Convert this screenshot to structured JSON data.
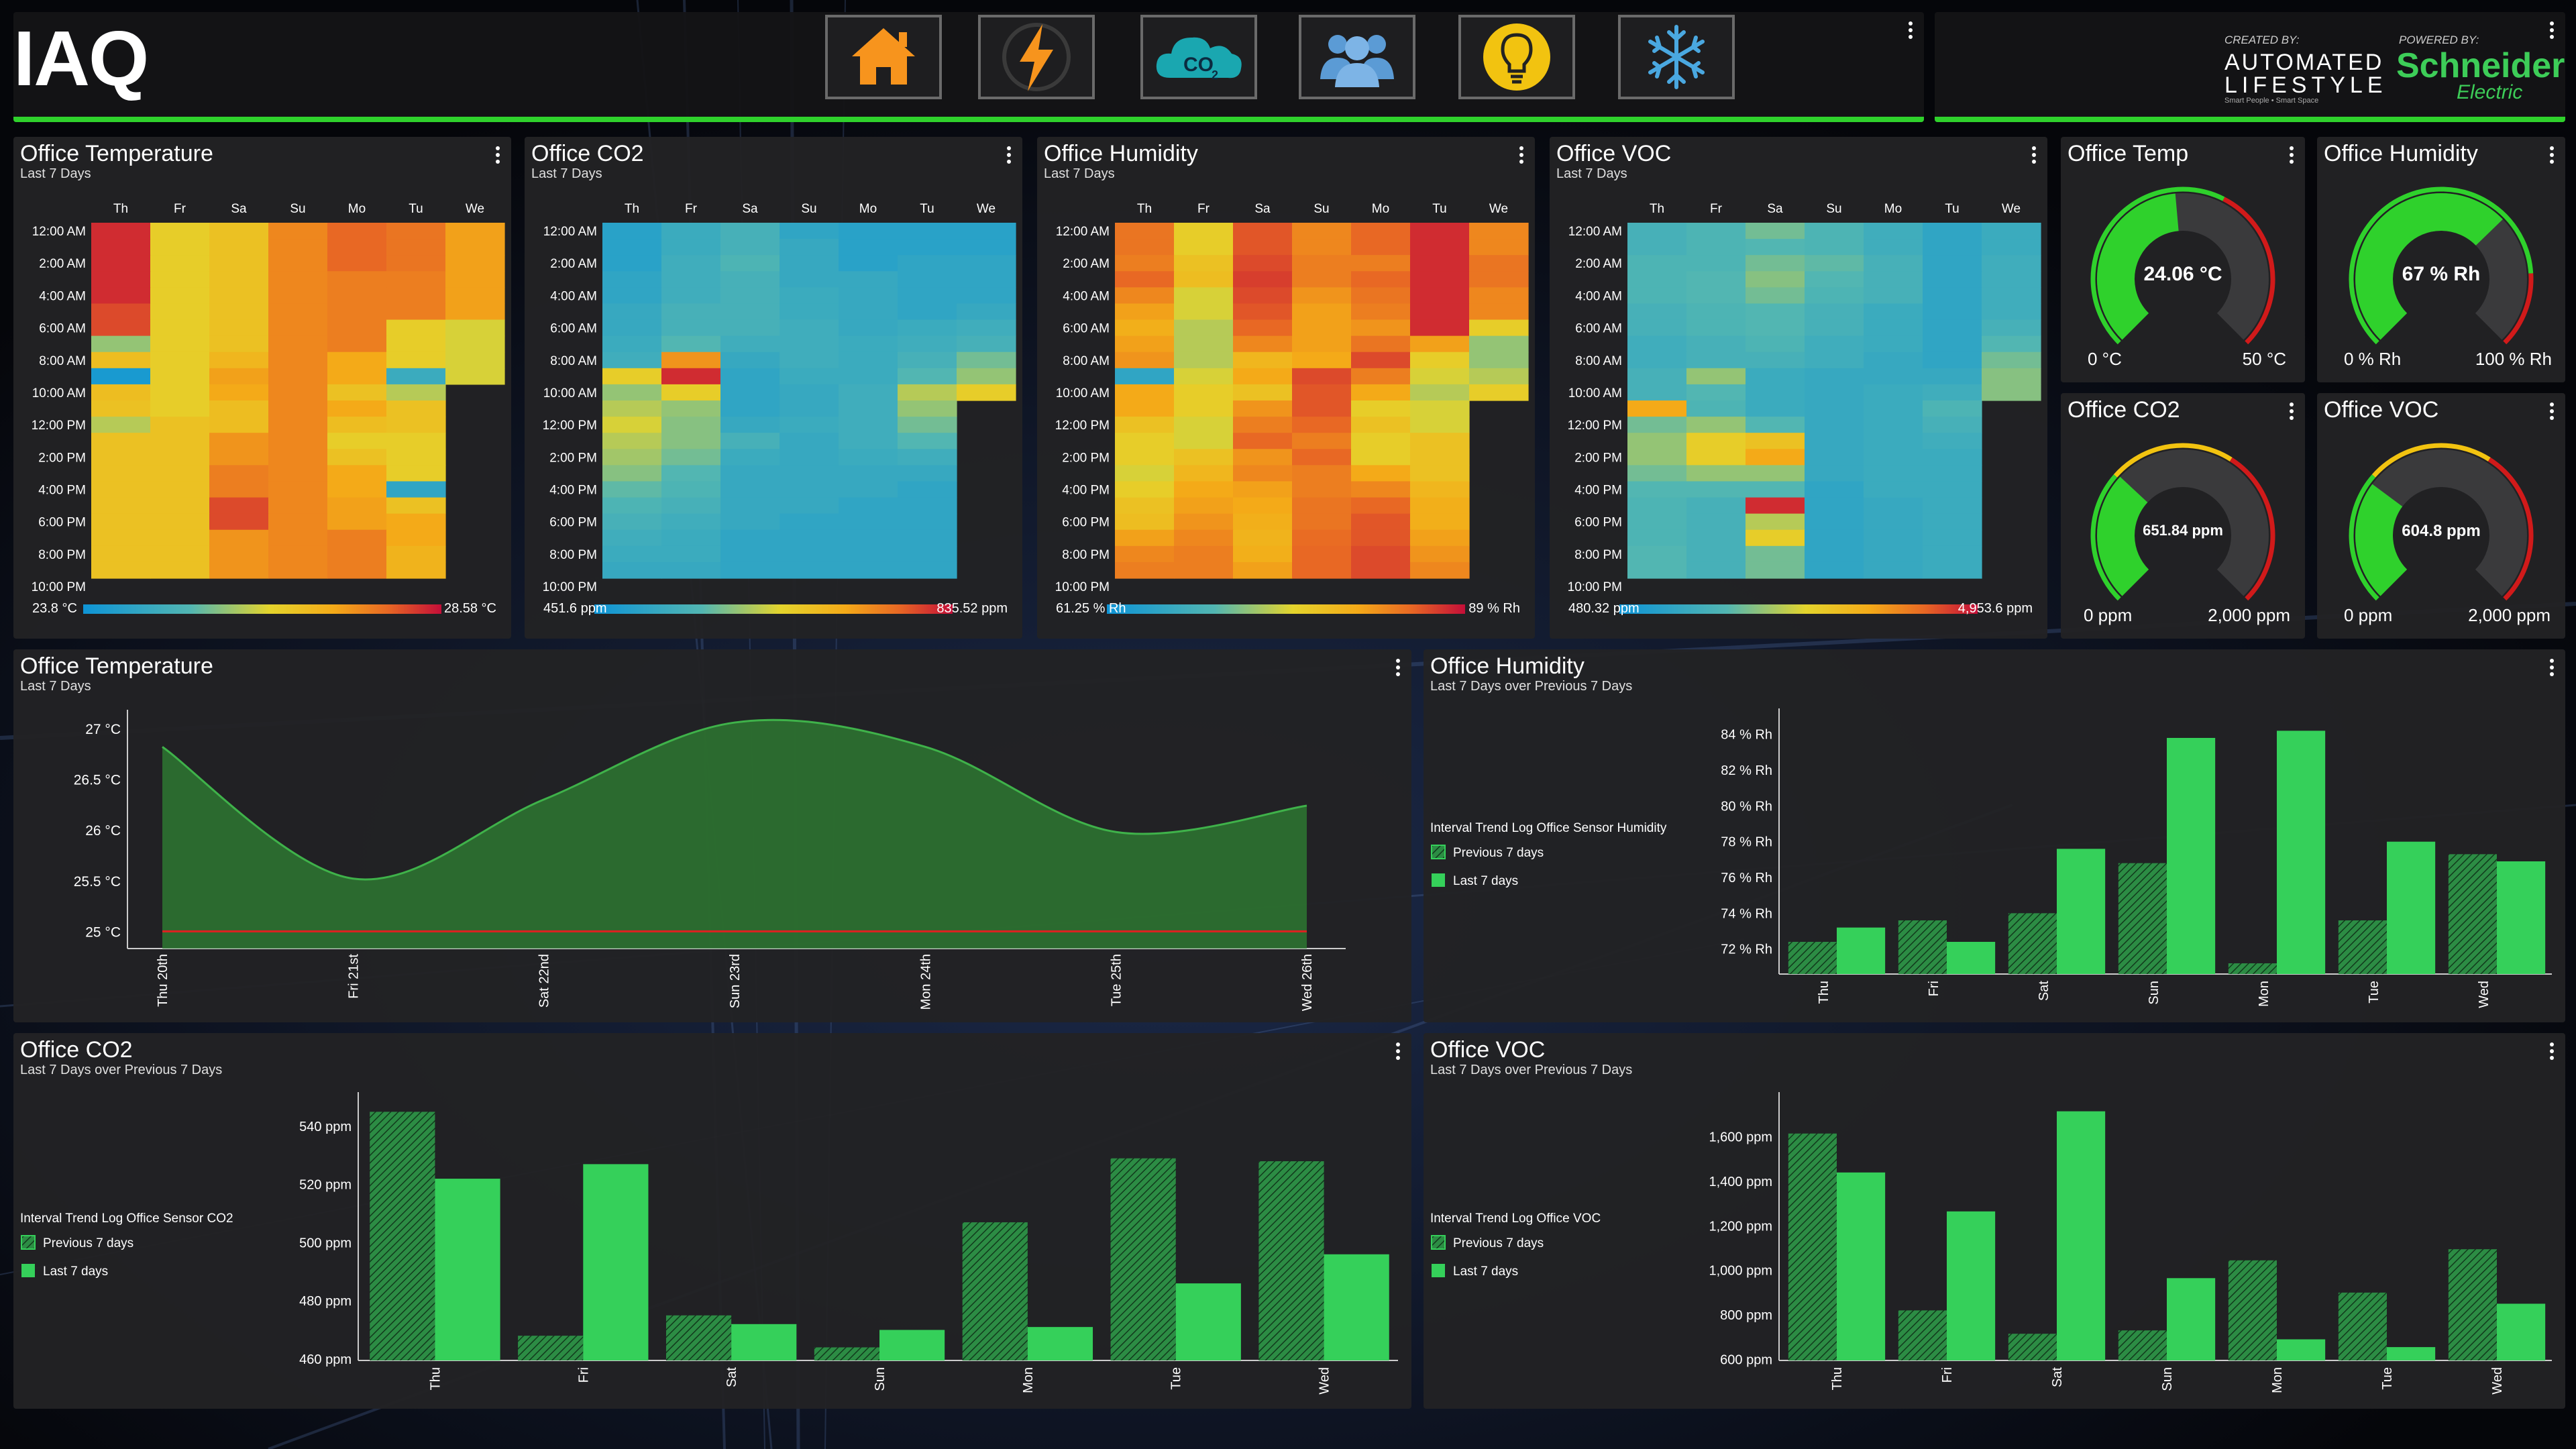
{
  "header": {
    "title": "IAQ",
    "nav": [
      "home-icon",
      "lightning-icon",
      "co2-cloud-icon",
      "users-icon",
      "lightbulb-icon",
      "snowflake-icon"
    ],
    "nav_co2_label": "CO",
    "nav_co2_sub": "2",
    "created_by": "CREATED BY:",
    "brand1_line1": "AUTOMATED",
    "brand1_line2": "LIFESTYLE",
    "brand1_tag": "Smart People • Smart Space",
    "powered_by": "POWERED BY:",
    "brand2_line1": "Schneider",
    "brand2_line2": "Electric"
  },
  "colors": {
    "accent_green": "#2fd12c",
    "bar_green": "#35d05a",
    "gauge_green": "#2fd12c",
    "gauge_yellow": "#f2c310",
    "gauge_red": "#d11a1a",
    "panel_bg": "#232325"
  },
  "heatmap_common": {
    "days": [
      "Th",
      "Fr",
      "Sa",
      "Su",
      "Mo",
      "Tu",
      "We"
    ],
    "times": [
      "12:00 AM",
      "2:00 AM",
      "4:00 AM",
      "6:00 AM",
      "8:00 AM",
      "10:00 AM",
      "12:00 PM",
      "2:00 PM",
      "4:00 PM",
      "6:00 PM",
      "8:00 PM",
      "10:00 PM"
    ]
  },
  "heatmaps": [
    {
      "title": "Office Temperature",
      "subtitle": "Last 7 Days",
      "min_label": "23.8 °C",
      "max_label": "28.58 °C",
      "values": [
        [
          0.95,
          0.55,
          0.6,
          0.78,
          0.85,
          0.82,
          0.72
        ],
        [
          0.95,
          0.55,
          0.6,
          0.78,
          0.85,
          0.82,
          0.72
        ],
        [
          0.95,
          0.55,
          0.6,
          0.78,
          0.85,
          0.82,
          0.72
        ],
        [
          0.95,
          0.55,
          0.6,
          0.78,
          0.8,
          0.8,
          0.72
        ],
        [
          0.95,
          0.55,
          0.6,
          0.78,
          0.8,
          0.8,
          0.72
        ],
        [
          0.9,
          0.55,
          0.6,
          0.78,
          0.8,
          0.8,
          0.72
        ],
        [
          0.9,
          0.55,
          0.6,
          0.78,
          0.8,
          0.55,
          0.5
        ],
        [
          0.4,
          0.55,
          0.6,
          0.78,
          0.8,
          0.55,
          0.5
        ],
        [
          0.62,
          0.55,
          0.65,
          0.78,
          0.7,
          0.55,
          0.5
        ],
        [
          0.05,
          0.55,
          0.72,
          0.78,
          0.7,
          0.2,
          0.5
        ],
        [
          0.62,
          0.55,
          0.7,
          0.78,
          0.6,
          0.45,
          null
        ],
        [
          0.6,
          0.55,
          0.62,
          0.78,
          0.7,
          0.6,
          null
        ],
        [
          0.45,
          0.6,
          0.62,
          0.78,
          0.62,
          0.6,
          null
        ],
        [
          0.6,
          0.6,
          0.75,
          0.78,
          0.55,
          0.55,
          null
        ],
        [
          0.6,
          0.6,
          0.75,
          0.78,
          0.6,
          0.55,
          null
        ],
        [
          0.6,
          0.6,
          0.8,
          0.78,
          0.7,
          0.55,
          null
        ],
        [
          0.6,
          0.6,
          0.8,
          0.78,
          0.7,
          0.15,
          null
        ],
        [
          0.6,
          0.6,
          0.9,
          0.78,
          0.72,
          0.6,
          null
        ],
        [
          0.6,
          0.6,
          0.9,
          0.78,
          0.72,
          0.7,
          null
        ],
        [
          0.6,
          0.6,
          0.75,
          0.78,
          0.8,
          0.7,
          null
        ],
        [
          0.6,
          0.6,
          0.75,
          0.78,
          0.8,
          0.66,
          null
        ],
        [
          0.6,
          0.6,
          0.75,
          0.78,
          0.8,
          0.66,
          null
        ]
      ]
    },
    {
      "title": "Office CO2",
      "subtitle": "Last 7 Days",
      "min_label": "451.6 ppm",
      "max_label": "835.52 ppm",
      "values": [
        [
          0.12,
          0.2,
          0.25,
          0.15,
          0.12,
          0.12,
          0.12
        ],
        [
          0.12,
          0.2,
          0.25,
          0.18,
          0.12,
          0.12,
          0.12
        ],
        [
          0.12,
          0.22,
          0.28,
          0.18,
          0.12,
          0.15,
          0.15
        ],
        [
          0.15,
          0.22,
          0.25,
          0.18,
          0.18,
          0.15,
          0.15
        ],
        [
          0.15,
          0.22,
          0.25,
          0.2,
          0.18,
          0.15,
          0.15
        ],
        [
          0.18,
          0.25,
          0.25,
          0.2,
          0.18,
          0.15,
          0.18
        ],
        [
          0.18,
          0.25,
          0.25,
          0.22,
          0.18,
          0.2,
          0.22
        ],
        [
          0.2,
          0.3,
          0.22,
          0.22,
          0.2,
          0.22,
          0.25
        ],
        [
          0.22,
          0.75,
          0.18,
          0.22,
          0.2,
          0.25,
          0.35
        ],
        [
          0.55,
          0.95,
          0.15,
          0.2,
          0.2,
          0.3,
          0.4
        ],
        [
          0.4,
          0.55,
          0.15,
          0.18,
          0.22,
          0.45,
          0.55
        ],
        [
          0.45,
          0.4,
          0.15,
          0.18,
          0.22,
          0.4,
          null
        ],
        [
          0.5,
          0.38,
          0.18,
          0.2,
          0.22,
          0.35,
          null
        ],
        [
          0.45,
          0.38,
          0.25,
          0.18,
          0.22,
          0.3,
          null
        ],
        [
          0.42,
          0.35,
          0.2,
          0.18,
          0.2,
          0.22,
          null
        ],
        [
          0.38,
          0.3,
          0.18,
          0.18,
          0.18,
          0.18,
          null
        ],
        [
          0.32,
          0.28,
          0.18,
          0.18,
          0.18,
          0.15,
          null
        ],
        [
          0.28,
          0.25,
          0.18,
          0.18,
          0.15,
          0.15,
          null
        ],
        [
          0.25,
          0.22,
          0.18,
          0.15,
          0.15,
          0.15,
          null
        ],
        [
          0.22,
          0.2,
          0.15,
          0.15,
          0.15,
          0.15,
          null
        ],
        [
          0.2,
          0.2,
          0.15,
          0.15,
          0.15,
          0.15,
          null
        ],
        [
          0.18,
          0.18,
          0.15,
          0.15,
          0.15,
          0.15,
          null
        ]
      ]
    },
    {
      "title": "Office Humidity",
      "subtitle": "Last 7 Days",
      "min_label": "61.25 % Rh",
      "max_label": "89 % Rh",
      "values": [
        [
          0.82,
          0.55,
          0.88,
          0.78,
          0.85,
          0.95,
          0.78
        ],
        [
          0.82,
          0.55,
          0.88,
          0.78,
          0.85,
          0.95,
          0.78
        ],
        [
          0.8,
          0.6,
          0.9,
          0.8,
          0.8,
          0.95,
          0.82
        ],
        [
          0.85,
          0.62,
          0.92,
          0.8,
          0.85,
          0.95,
          0.82
        ],
        [
          0.78,
          0.5,
          0.9,
          0.75,
          0.82,
          0.95,
          0.78
        ],
        [
          0.72,
          0.5,
          0.88,
          0.72,
          0.8,
          0.95,
          0.78
        ],
        [
          0.68,
          0.45,
          0.85,
          0.72,
          0.75,
          0.95,
          0.55
        ],
        [
          0.72,
          0.45,
          0.78,
          0.72,
          0.82,
          0.72,
          0.4
        ],
        [
          0.75,
          0.45,
          0.65,
          0.7,
          0.9,
          0.55,
          0.4
        ],
        [
          0.15,
          0.5,
          0.7,
          0.9,
          0.8,
          0.5,
          0.45
        ],
        [
          0.7,
          0.55,
          0.6,
          0.88,
          0.7,
          0.45,
          0.55
        ],
        [
          0.7,
          0.55,
          0.75,
          0.88,
          0.55,
          0.5,
          null
        ],
        [
          0.6,
          0.5,
          0.8,
          0.85,
          0.6,
          0.5,
          null
        ],
        [
          0.55,
          0.5,
          0.85,
          0.8,
          0.55,
          0.6,
          null
        ],
        [
          0.55,
          0.6,
          0.75,
          0.85,
          0.55,
          0.6,
          null
        ],
        [
          0.5,
          0.65,
          0.78,
          0.8,
          0.7,
          0.6,
          null
        ],
        [
          0.55,
          0.7,
          0.72,
          0.8,
          0.78,
          0.65,
          null
        ],
        [
          0.6,
          0.72,
          0.7,
          0.82,
          0.85,
          0.68,
          null
        ],
        [
          0.62,
          0.75,
          0.68,
          0.82,
          0.88,
          0.68,
          null
        ],
        [
          0.72,
          0.78,
          0.66,
          0.84,
          0.88,
          0.72,
          null
        ],
        [
          0.78,
          0.8,
          0.68,
          0.85,
          0.9,
          0.75,
          null
        ],
        [
          0.8,
          0.8,
          0.72,
          0.85,
          0.9,
          0.78,
          null
        ]
      ]
    },
    {
      "title": "Office VOC",
      "subtitle": "Last 7 Days",
      "min_label": "480.32 ppm",
      "max_label": "4,953.6 ppm",
      "values": [
        [
          0.25,
          0.28,
          0.35,
          0.28,
          0.22,
          0.15,
          0.2
        ],
        [
          0.25,
          0.28,
          0.3,
          0.28,
          0.22,
          0.15,
          0.2
        ],
        [
          0.28,
          0.28,
          0.35,
          0.32,
          0.25,
          0.15,
          0.22
        ],
        [
          0.28,
          0.3,
          0.38,
          0.3,
          0.25,
          0.15,
          0.22
        ],
        [
          0.28,
          0.3,
          0.35,
          0.28,
          0.25,
          0.15,
          0.22
        ],
        [
          0.25,
          0.28,
          0.3,
          0.25,
          0.2,
          0.15,
          0.22
        ],
        [
          0.25,
          0.28,
          0.3,
          0.25,
          0.2,
          0.15,
          0.25
        ],
        [
          0.22,
          0.25,
          0.28,
          0.22,
          0.2,
          0.15,
          0.3
        ],
        [
          0.22,
          0.25,
          0.25,
          0.22,
          0.18,
          0.15,
          0.35
        ],
        [
          0.25,
          0.4,
          0.2,
          0.18,
          0.18,
          0.18,
          0.38
        ],
        [
          0.25,
          0.3,
          0.2,
          0.18,
          0.2,
          0.22,
          0.38
        ],
        [
          0.7,
          0.28,
          0.2,
          0.18,
          0.2,
          0.28,
          null
        ],
        [
          0.35,
          0.4,
          0.3,
          0.18,
          0.2,
          0.25,
          null
        ],
        [
          0.4,
          0.55,
          0.6,
          0.18,
          0.2,
          0.22,
          null
        ],
        [
          0.4,
          0.55,
          0.7,
          0.18,
          0.2,
          0.2,
          null
        ],
        [
          0.35,
          0.4,
          0.4,
          0.18,
          0.2,
          0.2,
          null
        ],
        [
          0.3,
          0.3,
          0.3,
          0.15,
          0.2,
          0.2,
          null
        ],
        [
          0.28,
          0.25,
          0.95,
          0.15,
          0.18,
          0.2,
          null
        ],
        [
          0.28,
          0.25,
          0.45,
          0.15,
          0.18,
          0.2,
          null
        ],
        [
          0.28,
          0.25,
          0.55,
          0.15,
          0.18,
          0.2,
          null
        ],
        [
          0.3,
          0.25,
          0.35,
          0.15,
          0.18,
          0.2,
          null
        ],
        [
          0.3,
          0.25,
          0.35,
          0.15,
          0.18,
          0.2,
          null
        ]
      ]
    }
  ],
  "gauges": [
    {
      "title": "Office Temp",
      "value_label": "24.06 °C",
      "value": 24.06,
      "min": 0,
      "max": 50,
      "min_label": "0 °C",
      "max_label": "50 °C",
      "bands": [
        [
          0,
          0.6,
          "green"
        ],
        [
          0.6,
          1.0,
          "red"
        ]
      ]
    },
    {
      "title": "Office Humidity",
      "value_label": "67 % Rh",
      "value": 67,
      "min": 0,
      "max": 100,
      "min_label": "0 % Rh",
      "max_label": "100 % Rh",
      "bands": [
        [
          0,
          0.82,
          "green"
        ],
        [
          0.82,
          1.0,
          "red"
        ]
      ]
    },
    {
      "title": "Office CO2",
      "value_label": "651.84 ppm",
      "value": 651.84,
      "min": 0,
      "max": 2000,
      "min_label": "0 ppm",
      "max_label": "2,000 ppm",
      "bands": [
        [
          0,
          0.32,
          "green"
        ],
        [
          0.32,
          0.62,
          "yellow"
        ],
        [
          0.62,
          1.0,
          "red"
        ]
      ]
    },
    {
      "title": "Office VOC",
      "value_label": "604.8 ppm",
      "value": 604.8,
      "min": 0,
      "max": 2000,
      "min_label": "0 ppm",
      "max_label": "2,000 ppm",
      "bands": [
        [
          0,
          0.32,
          "green"
        ],
        [
          0.32,
          0.62,
          "yellow"
        ],
        [
          0.62,
          1.0,
          "red"
        ]
      ]
    }
  ],
  "chart_data": [
    {
      "type": "area",
      "title": "Office Temperature",
      "subtitle": "Last 7 Days",
      "x_labels": [
        "Thu 20th",
        "Fri 21st",
        "Sat 22nd",
        "Sun 23rd",
        "Mon 24th",
        "Tue 25th",
        "Wed 26th"
      ],
      "x": [
        0,
        1,
        2,
        3,
        4,
        5,
        6
      ],
      "values": [
        26.82,
        25.52,
        26.3,
        27.06,
        26.82,
        25.98,
        26.24
      ],
      "y_ticks": [
        "27 °C",
        "26.5 °C",
        "26 °C",
        "25.5 °C",
        "25 °C"
      ],
      "y_tick_values": [
        27,
        26.5,
        26,
        25.5,
        25
      ],
      "ylim": [
        24.87,
        27.12
      ],
      "baseline": 25
    },
    {
      "type": "bar",
      "title": "Office Humidity",
      "subtitle": "Last 7 Days over Previous 7 Days",
      "legend_title": "Interval Trend Log Office Sensor Humidity",
      "categories": [
        "Thu",
        "Fri",
        "Sat",
        "Sun",
        "Mon",
        "Tue",
        "Wed"
      ],
      "series": [
        {
          "name": "Previous 7 days",
          "values": [
            72.4,
            73.6,
            74.0,
            76.8,
            71.2,
            73.6,
            77.3
          ]
        },
        {
          "name": "Last 7 days",
          "values": [
            73.2,
            72.4,
            77.6,
            83.8,
            84.2,
            78.0,
            76.9
          ]
        }
      ],
      "y_ticks": [
        "84 % Rh",
        "82 % Rh",
        "80 % Rh",
        "78 % Rh",
        "76 % Rh",
        "74 % Rh",
        "72 % Rh"
      ],
      "y_tick_values": [
        84,
        82,
        80,
        78,
        76,
        74,
        72
      ],
      "ylim": [
        70.6,
        85.0
      ]
    },
    {
      "type": "bar",
      "title": "Office CO2",
      "subtitle": "Last 7 Days over Previous 7 Days",
      "legend_title": "Interval Trend Log Office Sensor CO2",
      "categories": [
        "Thu",
        "Fri",
        "Sat",
        "Sun",
        "Mon",
        "Tue",
        "Wed"
      ],
      "series": [
        {
          "name": "Previous 7 days",
          "values": [
            545,
            468,
            475,
            464,
            507,
            529,
            528
          ]
        },
        {
          "name": "Last 7 days",
          "values": [
            522,
            527,
            472,
            470,
            471,
            486,
            496
          ]
        }
      ],
      "y_ticks": [
        "540 ppm",
        "520 ppm",
        "500 ppm",
        "480 ppm",
        "460 ppm"
      ],
      "y_tick_values": [
        540,
        520,
        500,
        480,
        460
      ],
      "ylim": [
        459.5,
        549.0
      ]
    },
    {
      "type": "bar",
      "title": "Office VOC",
      "subtitle": "Last 7 Days over Previous 7 Days",
      "legend_title": "Interval Trend Log Office VOC",
      "categories": [
        "Thu",
        "Fri",
        "Sat",
        "Sun",
        "Mon",
        "Tue",
        "Wed"
      ],
      "series": [
        {
          "name": "Previous 7 days",
          "values": [
            1615,
            820,
            715,
            730,
            1045,
            900,
            1095
          ]
        },
        {
          "name": "Last 7 days",
          "values": [
            1440,
            1265,
            1715,
            965,
            690,
            655,
            850
          ]
        }
      ],
      "y_ticks": [
        "1,600 ppm",
        "1,400 ppm",
        "1,200 ppm",
        "1,000 ppm",
        "800 ppm",
        "600 ppm"
      ],
      "y_tick_values": [
        1600,
        1400,
        1200,
        1000,
        800,
        600
      ],
      "ylim": [
        595,
        1765
      ]
    }
  ]
}
